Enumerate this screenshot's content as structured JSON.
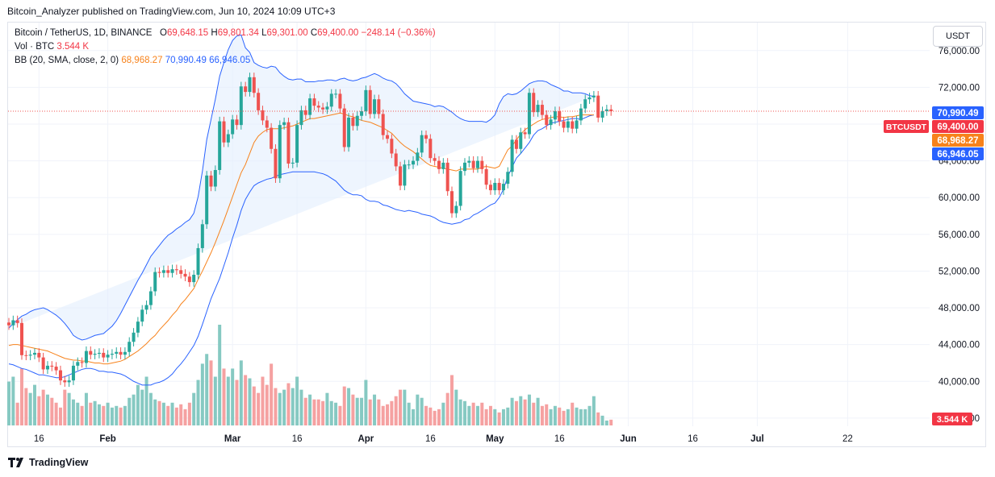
{
  "header": {
    "published_text": "Bitcoin_Analyzer published on TradingView.com, Jun 10, 2024 10:09 UTC+3"
  },
  "legend": {
    "symbol": "Bitcoin / TetherUS, 1D, BINANCE",
    "open_label": "O",
    "open": "69,648.15",
    "high_label": "H",
    "high": "69,801.34",
    "low_label": "L",
    "low": "69,301.00",
    "close_label": "C",
    "close": "69,400.00",
    "change": "−248.14 (−0.36%)",
    "vol_label": "Vol · BTC",
    "vol_value": "3.544 K",
    "bb_label": "BB (20, SMA, close, 2, 0)",
    "bb_basis": "68,968.27",
    "bb_upper": "70,990.49",
    "bb_lower": "66,946.05"
  },
  "unit_button": "USDT",
  "footer": {
    "brand": "TradingView"
  },
  "colors": {
    "up": "#26a69a",
    "down": "#ef5350",
    "bb_band": "#2962ff",
    "bb_basis": "#f7821b",
    "bb_fill": "#e3effd",
    "vol_up": "#86c9c2",
    "vol_down": "#f5a1a1",
    "price_line": "#ef5350"
  },
  "chart_data": {
    "type": "candlestick",
    "symbol": "BTCUSDT",
    "interval": "1D",
    "y_ticks": [
      "76,000.00",
      "72,000.00",
      "68,000.00",
      "64,000.00",
      "60,000.00",
      "56,000.00",
      "52,000.00",
      "48,000.00",
      "44,000.00",
      "40,000.00",
      "36,000.00"
    ],
    "y_tick_values": [
      76000,
      72000,
      68000,
      64000,
      60000,
      56000,
      52000,
      48000,
      44000,
      40000,
      36000
    ],
    "y_range": [
      35200,
      78700
    ],
    "x_ticks": [
      {
        "label": "16",
        "date": "2024-01-16"
      },
      {
        "label": "Feb",
        "date": "2024-02-01"
      },
      {
        "label": "Mar",
        "date": "2024-03-01"
      },
      {
        "label": "16",
        "date": "2024-03-16"
      },
      {
        "label": "Apr",
        "date": "2024-04-01"
      },
      {
        "label": "16",
        "date": "2024-04-16"
      },
      {
        "label": "May",
        "date": "2024-05-01"
      },
      {
        "label": "16",
        "date": "2024-05-16"
      },
      {
        "label": "Jun",
        "date": "2024-06-01"
      },
      {
        "label": "16",
        "date": "2024-06-16"
      },
      {
        "label": "Jul",
        "date": "2024-07-01"
      },
      {
        "label": "22",
        "date": "2024-07-22"
      }
    ],
    "first_date": "2024-01-09",
    "last_date": "2024-06-10",
    "closes": [
      46100,
      46650,
      46350,
      42850,
      42800,
      42900,
      43100,
      42600,
      41300,
      41700,
      41600,
      41200,
      40100,
      39900,
      40100,
      41700,
      42100,
      42000,
      43300,
      42900,
      43000,
      43100,
      42600,
      42900,
      43000,
      43200,
      42900,
      43200,
      44300,
      45300,
      46500,
      47800,
      48300,
      49800,
      51900,
      51800,
      52100,
      51800,
      52200,
      52100,
      51700,
      51400,
      50800,
      51600,
      54500,
      57100,
      62400,
      61200,
      63000,
      68300,
      66000,
      66900,
      68500,
      67900,
      72100,
      71500,
      73100,
      71400,
      69500,
      68400,
      67600,
      65300,
      62100,
      67900,
      68200,
      63700,
      63800,
      67900,
      69500,
      69000,
      70800,
      70000,
      69800,
      69600,
      69900,
      71300,
      71300,
      69700,
      65500,
      68700,
      67800,
      68900,
      69400,
      71700,
      69100,
      70700,
      69100,
      66800,
      66400,
      64800,
      63400,
      61300,
      63600,
      63600,
      64000,
      64900,
      66800,
      66400,
      64300,
      64000,
      63100,
      63800,
      60700,
      58300,
      59100,
      62900,
      63800,
      64000,
      63200,
      64000,
      63100,
      61400,
      60800,
      61600,
      60800,
      61500,
      62800,
      66300,
      65300,
      67100,
      66900,
      71400,
      69300,
      70100,
      69000,
      67900,
      68500,
      69400,
      68300,
      67600,
      68300,
      67500,
      68400,
      69700,
      70700,
      70900,
      71100,
      68700,
      69400,
      69600,
      69400
    ],
    "bb_upper": [
      45800,
      46300,
      46700,
      47100,
      47300,
      47600,
      47800,
      47900,
      48000,
      47800,
      47500,
      47200,
      46800,
      46300,
      45700,
      45000,
      44700,
      44500,
      44600,
      44800,
      45000,
      45100,
      45200,
      45600,
      46000,
      46600,
      47400,
      48300,
      49200,
      50100,
      51000,
      51800,
      52700,
      53600,
      54200,
      54800,
      55400,
      55900,
      56200,
      56600,
      56900,
      57300,
      57600,
      58300,
      60100,
      62900,
      66300,
      68500,
      70700,
      73200,
      74700,
      76100,
      77100,
      77600,
      77700,
      76300,
      75800,
      74700,
      74400,
      74200,
      74100,
      74300,
      74200,
      73600,
      73200,
      72900,
      72800,
      72900,
      72900,
      72600,
      72600,
      72600,
      72700,
      72700,
      72800,
      72800,
      72700,
      72900,
      73000,
      72800,
      72700,
      72800,
      73000,
      73100,
      73300,
      73500,
      73300,
      73000,
      72800,
      72700,
      72400,
      71900,
      71300,
      70900,
      70500,
      70400,
      70300,
      70200,
      70100,
      69900,
      70000,
      69900,
      69600,
      69300,
      68900,
      68600,
      68400,
      68300,
      68300,
      68300,
      68300,
      68200,
      68500,
      69000,
      70200,
      71000,
      71300,
      71200,
      71300,
      71600,
      72000,
      72400,
      72600,
      72700,
      72700,
      72600,
      72300,
      72100,
      71900,
      71600,
      71600,
      71400,
      71400,
      71400,
      71300,
      71100,
      71000
    ],
    "bb_mid": [
      43900,
      44000,
      44000,
      43900,
      43800,
      43700,
      43600,
      43500,
      43400,
      43300,
      43100,
      42900,
      42700,
      42500,
      42400,
      42300,
      42300,
      42200,
      42200,
      42100,
      42000,
      42000,
      41900,
      41900,
      42000,
      42100,
      42200,
      42400,
      42700,
      43000,
      43300,
      43700,
      44100,
      44600,
      45000,
      45600,
      46100,
      46600,
      47200,
      47700,
      48400,
      48900,
      49500,
      50100,
      51100,
      52000,
      53000,
      54000,
      55100,
      56300,
      57500,
      58800,
      60100,
      61400,
      62700,
      63600,
      64800,
      66000,
      66700,
      67100,
      67400,
      67500,
      67500,
      67500,
      67600,
      67700,
      67800,
      68000,
      68200,
      68400,
      68600,
      68600,
      68700,
      68800,
      68900,
      69000,
      69100,
      69200,
      69100,
      68900,
      68800,
      68600,
      68400,
      68300,
      68200,
      68000,
      67800,
      67600,
      67300,
      67000,
      66500,
      66000,
      65600,
      65300,
      65000,
      64600,
      64200,
      63800,
      63500,
      63400,
      63300,
      63200,
      63100,
      63000,
      62900,
      63100,
      63100,
      63100,
      63100,
      63100,
      63300,
      63400,
      63300,
      63200,
      63400,
      64300,
      65200,
      65600,
      66300,
      66900,
      67400,
      67700,
      68000,
      68300,
      68500,
      68600,
      68700,
      68800,
      68800,
      68700,
      68800,
      68800,
      68900,
      69000,
      69000,
      69000,
      69000
    ],
    "bb_lower": [
      41900,
      41800,
      41600,
      41400,
      41300,
      41100,
      40900,
      40700,
      40700,
      40600,
      40500,
      40400,
      40400,
      40500,
      40700,
      40900,
      41100,
      41300,
      41400,
      41400,
      41300,
      41100,
      41100,
      41000,
      41000,
      40900,
      40800,
      40600,
      40300,
      40000,
      39800,
      39600,
      39600,
      39600,
      39800,
      39900,
      40100,
      40400,
      40800,
      41400,
      41900,
      42500,
      43200,
      43900,
      44900,
      46200,
      47600,
      49000,
      50100,
      51200,
      52600,
      54000,
      55600,
      57000,
      58600,
      59800,
      60600,
      61300,
      61600,
      61800,
      62000,
      62100,
      62300,
      62500,
      62600,
      62700,
      62800,
      62800,
      62800,
      62800,
      62800,
      62800,
      62700,
      62600,
      62400,
      62100,
      61800,
      61300,
      60800,
      60500,
      60300,
      60300,
      60200,
      59800,
      59600,
      59600,
      59500,
      59200,
      59100,
      58900,
      58700,
      58600,
      58500,
      58600,
      58500,
      58400,
      58200,
      58100,
      58000,
      57800,
      57500,
      57300,
      57200,
      57100,
      57200,
      57300,
      57600,
      57700,
      58100,
      58300,
      58600,
      58900,
      59200,
      59400,
      60000,
      60900,
      62300,
      63300,
      64300,
      64800,
      65400,
      66000,
      66800,
      67300,
      67500,
      67800,
      68100,
      68200,
      68300,
      68400,
      68500,
      68600,
      68600,
      68500,
      68700,
      68900,
      69000
    ],
    "volumes_k": [
      27,
      30,
      14,
      35,
      23,
      20,
      25,
      18,
      22,
      19,
      17,
      14,
      11,
      22,
      20,
      16,
      14,
      12,
      20,
      14,
      15,
      13,
      12,
      14,
      11,
      12,
      11,
      12,
      17,
      19,
      25,
      22,
      30,
      20,
      16,
      15,
      14,
      12,
      14,
      11,
      13,
      10,
      14,
      20,
      28,
      38,
      44,
      40,
      30,
      62,
      35,
      30,
      35,
      28,
      40,
      31,
      29,
      24,
      20,
      30,
      25,
      38,
      23,
      20,
      22,
      26,
      23,
      30,
      22,
      17,
      19,
      16,
      16,
      15,
      20,
      15,
      14,
      12,
      24,
      23,
      19,
      17,
      17,
      28,
      16,
      19,
      16,
      12,
      13,
      15,
      18,
      22,
      22,
      14,
      10,
      19,
      17,
      12,
      11,
      9,
      10,
      14,
      20,
      31,
      22,
      16,
      15,
      12,
      14,
      12,
      14,
      10,
      12,
      10,
      8,
      10,
      11,
      17,
      15,
      18,
      16,
      19,
      14,
      17,
      12,
      13,
      10,
      12,
      11,
      9,
      10,
      14,
      11,
      10,
      10,
      12,
      18,
      8,
      6,
      3,
      3.544
    ],
    "last_price": 69400,
    "labels": [
      {
        "text": "70,990.49",
        "role": "bb_upper"
      },
      {
        "text": "69,400.00",
        "role": "last_price"
      },
      {
        "text": "68,968.27",
        "role": "bb_basis"
      },
      {
        "text": "66,946.05",
        "role": "bb_lower"
      },
      {
        "text": "BTCUSDT",
        "role": "symbol_tag"
      },
      {
        "text": "3.544 K",
        "role": "volume"
      }
    ]
  }
}
